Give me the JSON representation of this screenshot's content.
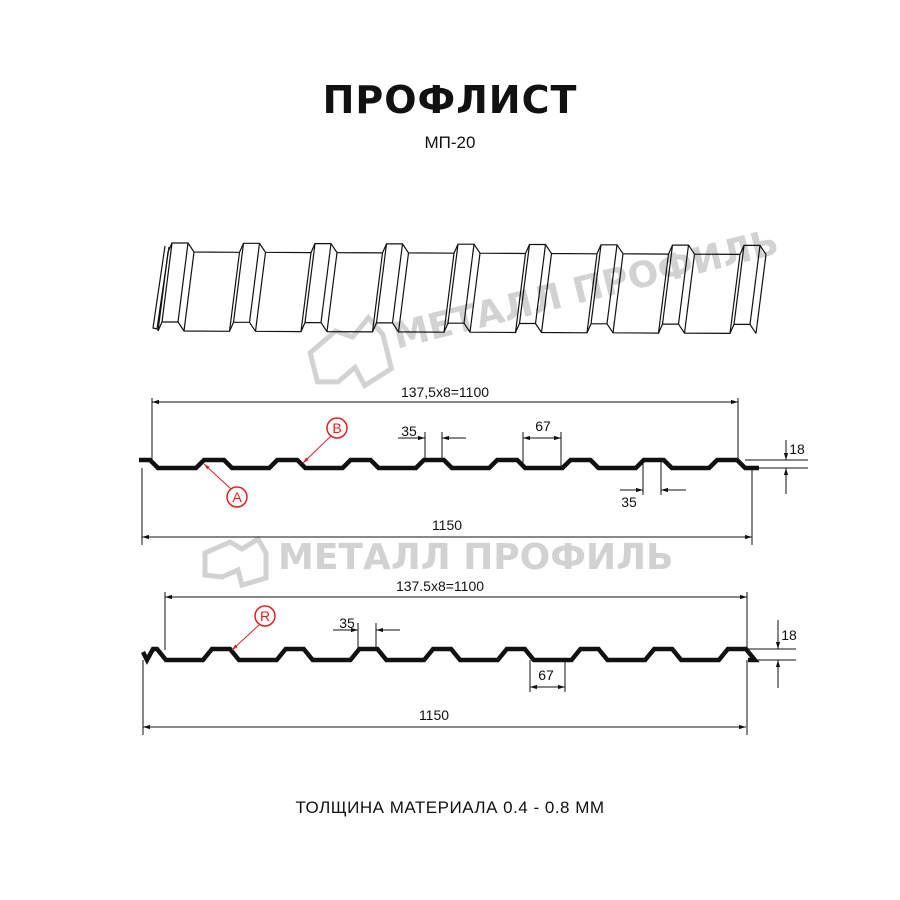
{
  "header": {
    "title": "ПРОФЛИСТ",
    "subtitle": "МП-20"
  },
  "watermark": {
    "text": "МЕТАЛЛ ПРОФИЛЬ"
  },
  "profile_a": {
    "pitch_label": "137,5x8=1100",
    "width_label": "1150",
    "top_flat_label": "35",
    "trough_label": "67",
    "bottom_flat_label": "35",
    "height_label": "18",
    "marker_b": "B",
    "marker_a": "A"
  },
  "profile_b": {
    "pitch_label": "137.5x8=1100",
    "width_label": "1150",
    "top_flat_label": "35",
    "trough_label": "67",
    "height_label": "18",
    "marker_r": "R"
  },
  "footer": {
    "thickness": "ТОЛЩИНА МАТЕРИАЛА 0.4 - 0.8 ММ"
  },
  "colors": {
    "line": "#111111",
    "marker": "#e02020",
    "watermark": "#d2d2d2"
  }
}
